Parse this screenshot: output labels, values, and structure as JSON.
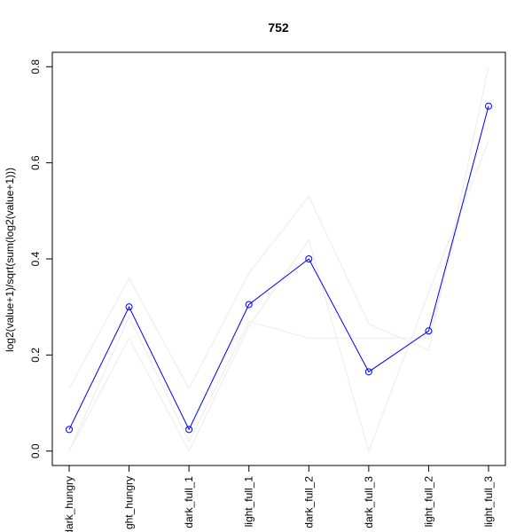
{
  "chart_data": {
    "type": "line",
    "title": "752",
    "xlabel": "",
    "ylabel": "log2(value+1)/sqrt(sum(log2(value+1)))",
    "categories": [
      "dark_hungry",
      "light_hungry",
      "dark_full_1",
      "light_full_1",
      "dark_full_2",
      "dark_full_3",
      "light_full_2",
      "light_full_3"
    ],
    "category_labels_visible": [
      "dark_hungry",
      "ght_hungry",
      "dark_full_1",
      "light_full_1",
      "dark_full_2",
      "dark_full_3",
      "light_full_2",
      "light_full_3"
    ],
    "ylim": [
      -0.03,
      0.83
    ],
    "yticks": [
      0.0,
      0.2,
      0.4,
      0.6,
      0.8
    ],
    "ytick_labels": [
      "0.0",
      "0.2",
      "0.4",
      "0.6",
      "0.8"
    ],
    "grid": false,
    "series": [
      {
        "values": [
          0.045,
          0.3,
          0.045,
          0.305,
          0.4,
          0.165,
          0.25,
          0.718
        ],
        "color": "#0000ff",
        "markers": "open-circle",
        "role": "highlight"
      }
    ],
    "background_series": [
      {
        "values": [
          0.13,
          0.36,
          0.13,
          0.37,
          0.53,
          0.265,
          0.21,
          0.8
        ]
      },
      {
        "values": [
          0.0,
          0.235,
          0.0,
          0.26,
          0.44,
          0.0,
          0.33,
          0.645
        ]
      },
      {
        "values": [
          0.0,
          0.28,
          0.02,
          0.27,
          0.235,
          0.235,
          0.235,
          0.72
        ]
      }
    ],
    "background_color": "#eeeeee"
  }
}
